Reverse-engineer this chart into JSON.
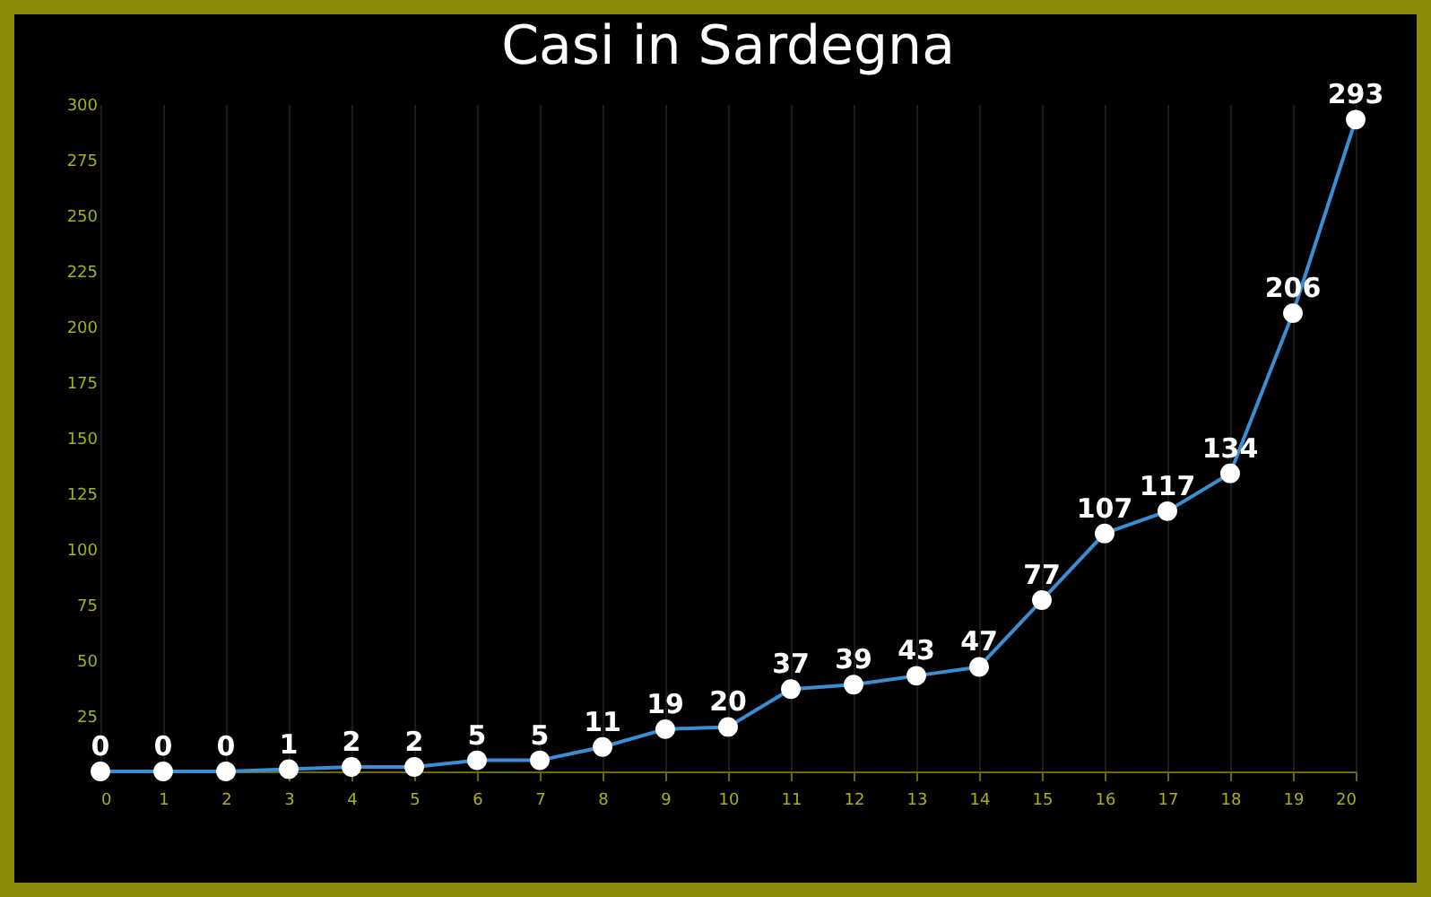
{
  "chart_data": {
    "type": "line",
    "title": "Casi in Sardegna",
    "x": [
      0,
      1,
      2,
      3,
      4,
      5,
      6,
      7,
      8,
      9,
      10,
      11,
      12,
      13,
      14,
      15,
      16,
      17,
      18,
      19,
      20
    ],
    "series": [
      {
        "color": "#3a8fd4",
        "values": [
          0,
          0,
          0,
          1,
          2,
          2,
          5,
          5,
          11,
          19,
          20,
          37,
          39,
          43,
          47,
          77,
          107,
          117,
          134,
          206,
          293
        ]
      }
    ],
    "xlim": [
      0,
      20
    ],
    "xticks": [
      0,
      1,
      2,
      3,
      4,
      5,
      6,
      7,
      8,
      9,
      10,
      11,
      12,
      13,
      14,
      15,
      16,
      17,
      18,
      19,
      20
    ],
    "ylim": [
      0,
      300
    ],
    "yticks": [
      25,
      50,
      75,
      100,
      125,
      150,
      175,
      200,
      225,
      250,
      275,
      300
    ],
    "grid": "x",
    "marker": "circle",
    "data_labels": true
  }
}
